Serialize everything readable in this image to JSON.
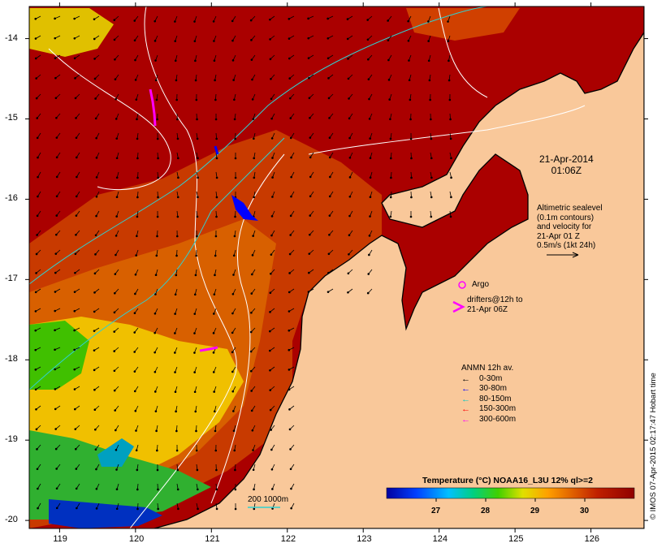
{
  "map": {
    "date_title": [
      "21-Apr-2014",
      "01:06Z"
    ],
    "altimetry_note": [
      "Altimetric sealevel",
      "(0.1m contours)",
      "and velocity for",
      "21-Apr 01 Z",
      "0.5m/s (1kt 24h)"
    ],
    "argo_label": "Argo",
    "drifters_label": [
      "drifters@12h to",
      "21-Apr 06Z"
    ],
    "anmn_title": "ANMN 12h av.",
    "anmn_legend": [
      {
        "label": "0-30m",
        "color": "#000000"
      },
      {
        "label": "30-80m",
        "color": "#0000ff"
      },
      {
        "label": "80-150m",
        "color": "#00c8c8"
      },
      {
        "label": "150-300m",
        "color": "#ff0000"
      },
      {
        "label": "300-600m",
        "color": "#ff00ff"
      }
    ],
    "colorbar_title": "Temperature (°C) NOAA16_L3U 12% ql>=2",
    "colorbar_ticks": [
      "27",
      "28",
      "29",
      "30"
    ],
    "colorbar_range": [
      26.0,
      31.0
    ],
    "isobath_label": "200  1000m",
    "credit": "© IMOS 07-Apr-2015 02:17:47 Hobart time",
    "lon_ticks": [
      "119",
      "120",
      "121",
      "122",
      "123",
      "124",
      "125",
      "126"
    ],
    "lat_ticks": [
      "-14",
      "-15",
      "-16",
      "-17",
      "-18",
      "-19",
      "-20"
    ],
    "lon_range": [
      118.6,
      126.7
    ],
    "lat_range": [
      -20.1,
      -13.6
    ],
    "colors": {
      "land": "#f9c89a",
      "hot": "#aa0000",
      "coast": "#000000"
    }
  }
}
